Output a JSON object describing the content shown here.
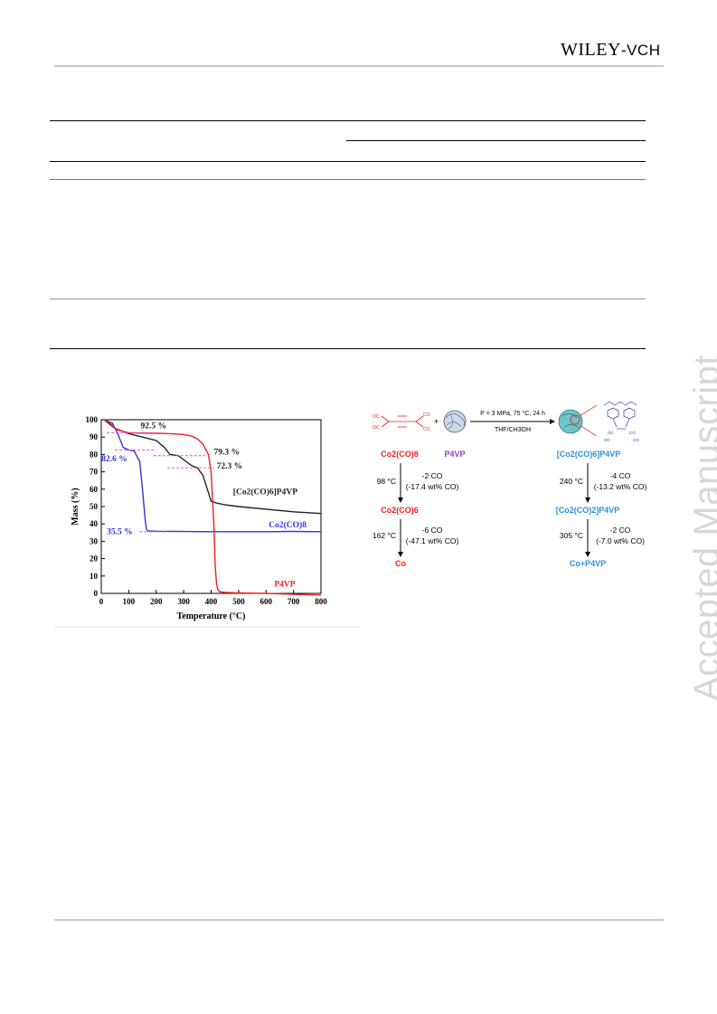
{
  "header": {
    "publisher_main": "WILEY",
    "publisher_suffix": "-VCH"
  },
  "watermark": "Accepted Manuscript",
  "tga_chart": {
    "chart_data": {
      "type": "line",
      "xlabel": "Temperature (°C)",
      "ylabel": "Mass (%)",
      "xlim": [
        0,
        800
      ],
      "ylim": [
        0,
        100
      ],
      "xticks": [
        0,
        100,
        200,
        300,
        400,
        500,
        600,
        700,
        800
      ],
      "yticks": [
        0,
        10,
        20,
        30,
        40,
        50,
        60,
        70,
        80,
        90,
        100
      ],
      "series": [
        {
          "name": "[Co2(CO)6]P4VP",
          "color": "#222222",
          "x": [
            10,
            50,
            100,
            150,
            200,
            230,
            250,
            280,
            300,
            330,
            350,
            370,
            390,
            400,
            420,
            450,
            500,
            600,
            700,
            800
          ],
          "y": [
            100,
            95,
            92,
            90,
            88,
            84,
            80,
            79.3,
            77,
            73.5,
            72.3,
            68,
            58,
            53,
            52,
            51,
            50,
            48.5,
            47,
            46
          ]
        },
        {
          "name": "Co2(CO)8",
          "color": "#3333dd",
          "x": [
            10,
            40,
            60,
            80,
            100,
            120,
            140,
            150,
            160,
            165,
            170,
            200,
            300,
            400,
            500,
            600,
            700,
            800
          ],
          "y": [
            100,
            98,
            92,
            84,
            82.6,
            82,
            76,
            60,
            42,
            37,
            36,
            35.8,
            35.6,
            35.5,
            35.5,
            35.5,
            35.7,
            35.5
          ]
        },
        {
          "name": "P4VP",
          "color": "#ee2222",
          "x": [
            10,
            30,
            60,
            100,
            150,
            200,
            250,
            300,
            330,
            350,
            370,
            390,
            400,
            410,
            415,
            420,
            425,
            430,
            450,
            500,
            600,
            700,
            800
          ],
          "y": [
            100,
            98,
            94,
            92.5,
            92.3,
            92.2,
            92,
            91.5,
            90.5,
            89,
            86,
            80,
            70,
            40,
            15,
            5,
            2,
            1,
            0.5,
            0.3,
            0,
            -0.5,
            -1
          ]
        }
      ],
      "annotations": [
        "92.5 %",
        "82.6 %",
        "79.3 %",
        "72.3 %",
        "35.5 %"
      ],
      "series_labels": [
        "[Co2(CO)6]P4VP",
        "Co2(CO)8",
        "P4VP"
      ]
    }
  },
  "scheme": {
    "conditions_top": "P = 3 MPa, 75 °C, 24 h",
    "conditions_bottom": "THF/CH3OH",
    "left_column": {
      "start": "Co2(CO)8",
      "polymer": "P4VP",
      "step1_temp": "98 °C",
      "step1_loss": "-2 CO",
      "step1_wt": "(-17.4 wt% CO)",
      "intermediate": "Co2(CO)6",
      "step2_temp": "162 °C",
      "step2_loss": "-6 CO",
      "step2_wt": "(-47.1 wt% CO)",
      "end": "Co"
    },
    "right_column": {
      "start": "[Co2(CO)6]P4VP",
      "step1_temp": "240 °C",
      "step1_loss": "-4 CO",
      "step1_wt": "(-13.2 wt% CO)",
      "intermediate": "[Co2(CO)2]P4VP",
      "step2_temp": "305 °C",
      "step2_loss": "-2 CO",
      "step2_wt": "(-7.0 wt% CO)",
      "end": "Co+P4VP"
    },
    "colors": {
      "red": "#ee2222",
      "purple": "#8a3fbf",
      "blue": "#2b8fd8"
    }
  }
}
